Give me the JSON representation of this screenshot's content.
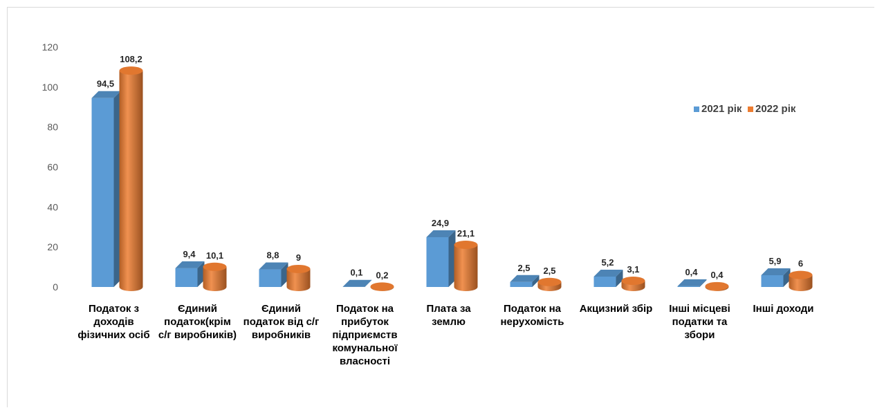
{
  "chart_data": {
    "type": "bar",
    "title": "",
    "xlabel": "",
    "ylabel": "",
    "ylim": [
      0,
      120
    ],
    "yticks": [
      0,
      20,
      40,
      60,
      80,
      100,
      120
    ],
    "legend_position": "right",
    "grid": false,
    "categories": [
      [
        "Податок з",
        "доходів",
        "фізичних осіб"
      ],
      [
        "Єдиний",
        "податок(крім",
        "с/г виробників)"
      ],
      [
        "Єдиний",
        "податок від с/г",
        "виробників"
      ],
      [
        "Податок на",
        "прибуток",
        "підприємств",
        "комунальної",
        "власності"
      ],
      [
        "Плата за",
        "землю"
      ],
      [
        "Податок на",
        "нерухомість"
      ],
      [
        "Акцизний збір"
      ],
      [
        "Інші місцеві",
        "податки та",
        "збори"
      ],
      [
        "Інші доходи"
      ]
    ],
    "series": [
      {
        "name": "2021 рік",
        "shape": "box",
        "color": "#5b9bd5",
        "values": [
          94.5,
          9.4,
          8.8,
          0.1,
          24.9,
          2.5,
          5.2,
          0.4,
          5.9
        ],
        "labels": [
          "94,5",
          "9,4",
          "8,8",
          "0,1",
          "24,9",
          "2,5",
          "5,2",
          "0,4",
          "5,9"
        ]
      },
      {
        "name": "2022 рік",
        "shape": "cylinder",
        "color": "#ed7d31",
        "values": [
          108.2,
          10.1,
          9,
          0.2,
          21.1,
          2.5,
          3.1,
          0.4,
          6
        ],
        "labels": [
          "108,2",
          "10,1",
          "9",
          "0,2",
          "21,1",
          "2,5",
          "3,1",
          "0,4",
          "6"
        ]
      }
    ]
  }
}
